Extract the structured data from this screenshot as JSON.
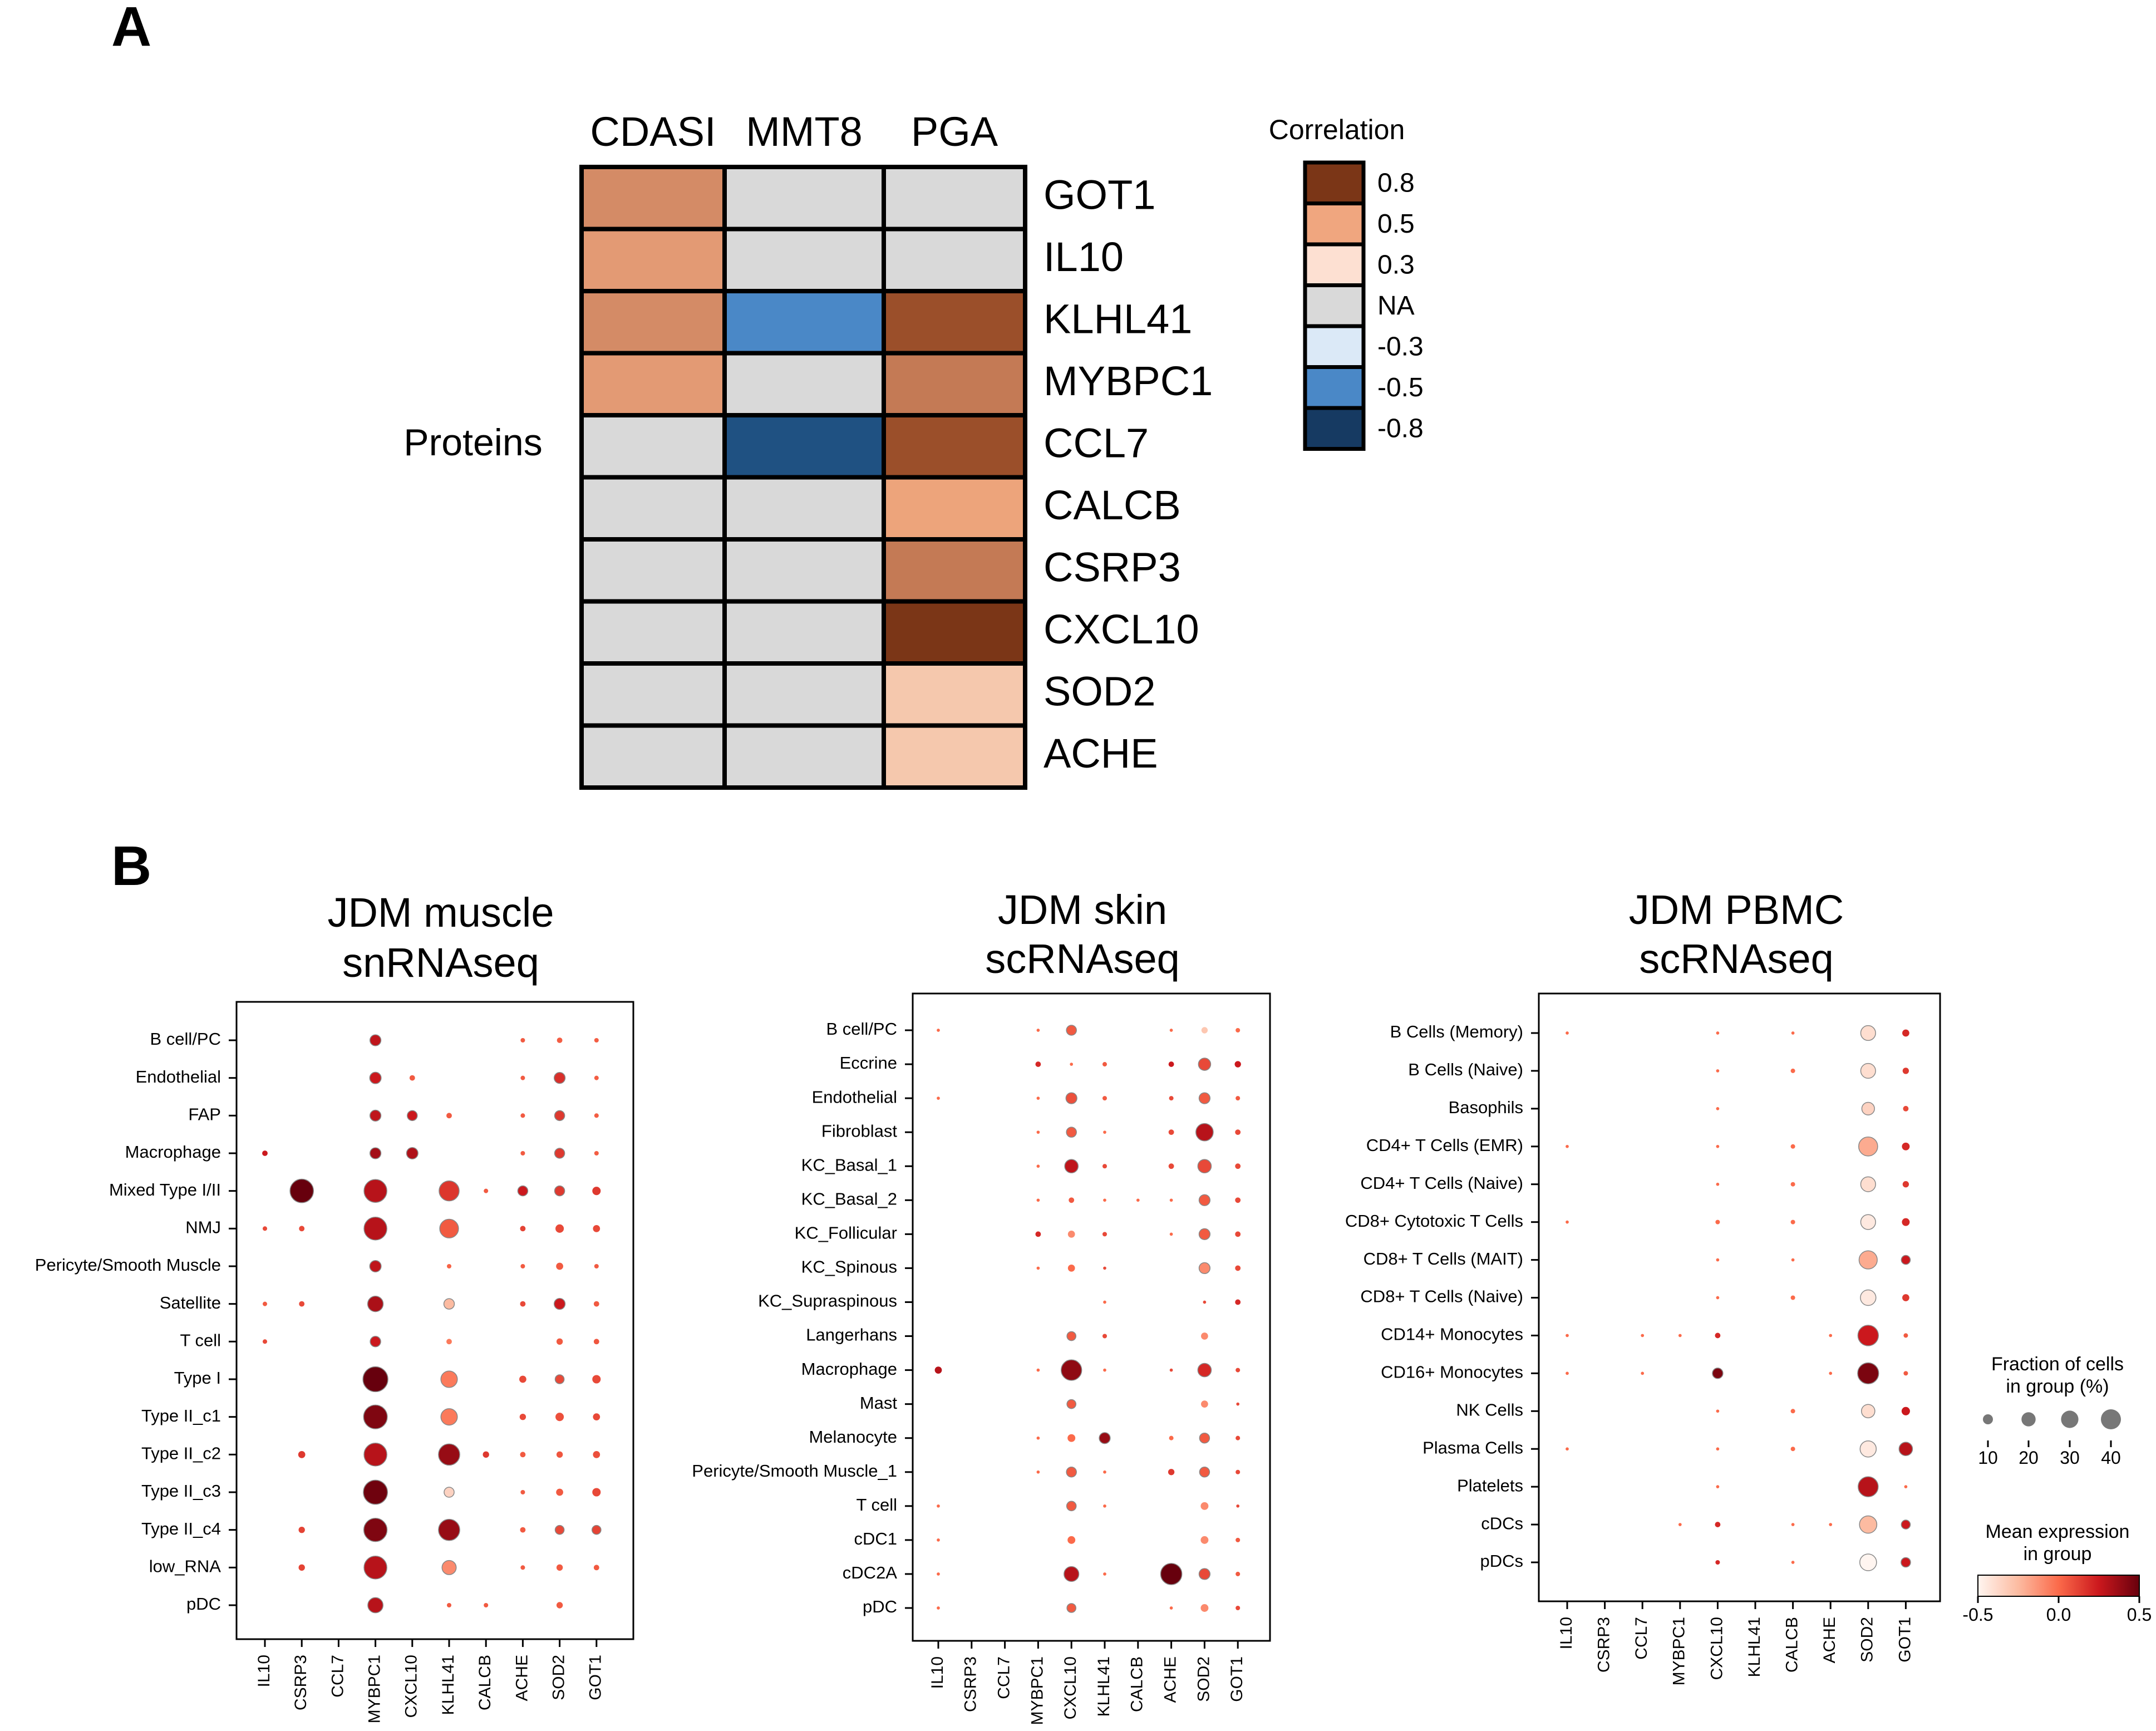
{
  "panel_a_letter": "A",
  "panel_b_letter": "B",
  "colors": {
    "NA": "#d9d9d9",
    "pos_0.8": "#7b3617",
    "pos_0.7": "#9b4f2a",
    "pos_0.6": "#c47a55",
    "pos_0.55": "#d48b66",
    "pos_0.5": "#e39a74",
    "pos_0.45": "#eda47b",
    "pos_0.3": "#f5c8ad",
    "neg_0.5": "#4a88c7",
    "neg_0.8": "#1f5182"
  },
  "chart_data": [
    {
      "type": "heatmap",
      "panel": "A",
      "row_group_label": "Proteins",
      "columns": [
        "CDASI",
        "MMT8",
        "PGA"
      ],
      "rows": [
        "GOT1",
        "IL10",
        "KLHL41",
        "MYBPC1",
        "CCL7",
        "CALCB",
        "CSRP3",
        "CXCL10",
        "SOD2",
        "ACHE"
      ],
      "values": [
        [
          0.55,
          null,
          null
        ],
        [
          0.5,
          null,
          null
        ],
        [
          0.55,
          -0.5,
          0.7
        ],
        [
          0.5,
          null,
          0.6
        ],
        [
          null,
          -0.8,
          0.7
        ],
        [
          null,
          null,
          0.45
        ],
        [
          null,
          null,
          0.6
        ],
        [
          null,
          null,
          0.8
        ],
        [
          null,
          null,
          0.3
        ],
        [
          null,
          null,
          0.3
        ]
      ],
      "legend": {
        "title": "Correlation",
        "entries": [
          "0.8",
          "0.5",
          "0.3",
          "NA",
          "-0.3",
          "-0.5",
          "-0.8"
        ],
        "colors": [
          "#7b3617",
          "#f0a67f",
          "#fde0d2",
          "#d9d9d9",
          "#dbe9f7",
          "#4a88c7",
          "#163a62"
        ]
      }
    },
    {
      "type": "scatter",
      "panel": "B",
      "title_lines": [
        "JDM muscle",
        "snRNAseq"
      ],
      "genes": [
        "IL10",
        "CSRP3",
        "CCL7",
        "MYBPC1",
        "CXCL10",
        "KLHL41",
        "CALCB",
        "ACHE",
        "SOD2",
        "GOT1"
      ],
      "groups": [
        "B cell/PC",
        "Endothelial",
        "FAP",
        "Macrophage",
        "Mixed Type I/II",
        "NMJ",
        "Pericyte/Smooth Muscle",
        "Satellite",
        "T cell",
        "Type I",
        "Type II_c1",
        "Type II_c2",
        "Type II_c3",
        "Type II_c4",
        "low_RNA",
        "pDC"
      ],
      "fraction_pct": [
        [
          0,
          0,
          0,
          12,
          0,
          0,
          0,
          2,
          3,
          2
        ],
        [
          0,
          0,
          0,
          13,
          3,
          0,
          0,
          2,
          12,
          2
        ],
        [
          0,
          0,
          0,
          12,
          10,
          3,
          0,
          2,
          10,
          2
        ],
        [
          3,
          0,
          0,
          12,
          13,
          0,
          0,
          2,
          10,
          2
        ],
        [
          0,
          55,
          0,
          52,
          0,
          40,
          2,
          10,
          10,
          7
        ],
        [
          2,
          3,
          0,
          52,
          0,
          35,
          0,
          3,
          7,
          5
        ],
        [
          0,
          0,
          0,
          13,
          0,
          2,
          0,
          2,
          5,
          2
        ],
        [
          2,
          3,
          0,
          24,
          0,
          11,
          0,
          3,
          12,
          3
        ],
        [
          2,
          0,
          0,
          11,
          0,
          3,
          0,
          0,
          4,
          3
        ],
        [
          0,
          0,
          0,
          62,
          0,
          27,
          0,
          5,
          8,
          7
        ],
        [
          0,
          0,
          0,
          56,
          0,
          27,
          0,
          4,
          7,
          5
        ],
        [
          0,
          5,
          0,
          52,
          0,
          45,
          4,
          3,
          4,
          5
        ],
        [
          0,
          0,
          0,
          58,
          0,
          10,
          0,
          2,
          5,
          7
        ],
        [
          0,
          4,
          0,
          54,
          0,
          45,
          0,
          3,
          8,
          8
        ],
        [
          0,
          4,
          0,
          52,
          0,
          20,
          0,
          2,
          4,
          3
        ],
        [
          0,
          0,
          0,
          23,
          0,
          2,
          2,
          0,
          4,
          0
        ]
      ],
      "mean_expr": [
        [
          0,
          0,
          0,
          0.28,
          0,
          0,
          0,
          0.05,
          0.04,
          0.04
        ],
        [
          0,
          0,
          0,
          0.25,
          0.05,
          0,
          0,
          0.05,
          0.18,
          0.04
        ],
        [
          0,
          0,
          0,
          0.28,
          0.25,
          0.05,
          0,
          0.05,
          0.15,
          0.04
        ],
        [
          0.25,
          0,
          0,
          0.35,
          0.32,
          0,
          0,
          0.05,
          0.15,
          0.04
        ],
        [
          0,
          0.5,
          0,
          0.3,
          0,
          0.16,
          0.05,
          0.25,
          0.15,
          0.15
        ],
        [
          0.1,
          0.1,
          0,
          0.3,
          0,
          0.05,
          0,
          0.12,
          0.1,
          0.1
        ],
        [
          0,
          0,
          0,
          0.28,
          0,
          0.02,
          0,
          0.05,
          0.05,
          0.05
        ],
        [
          0.05,
          0.1,
          0,
          0.33,
          0,
          -0.25,
          0,
          0.1,
          0.25,
          0.05
        ],
        [
          0.1,
          0,
          0,
          0.25,
          0,
          -0.05,
          0,
          0,
          0.05,
          0.06
        ],
        [
          0,
          0,
          0,
          0.5,
          0,
          -0.05,
          0,
          0.1,
          0.1,
          0.1
        ],
        [
          0,
          0,
          0,
          0.44,
          0,
          -0.05,
          0,
          0.1,
          0.08,
          0.1
        ],
        [
          0,
          0.15,
          0,
          0.3,
          0,
          0.38,
          0.15,
          0.05,
          0.06,
          0.08
        ],
        [
          0,
          0,
          0,
          0.48,
          0,
          -0.35,
          0,
          0.05,
          0.05,
          0.1
        ],
        [
          0,
          0.12,
          0,
          0.44,
          0,
          0.38,
          0,
          0.05,
          0.1,
          0.12
        ],
        [
          0,
          0.12,
          0,
          0.3,
          0,
          -0.1,
          0,
          0.05,
          0.05,
          0.05
        ],
        [
          0,
          0,
          0,
          0.3,
          0,
          0.05,
          0.05,
          0,
          0.05,
          0
        ]
      ]
    },
    {
      "type": "scatter",
      "panel": "B",
      "title_lines": [
        "JDM skin",
        "scRNAseq"
      ],
      "genes": [
        "IL10",
        "CSRP3",
        "CCL7",
        "MYBPC1",
        "CXCL10",
        "KLHL41",
        "CALCB",
        "ACHE",
        "SOD2",
        "GOT1"
      ],
      "groups": [
        "B cell/PC",
        "Eccrine",
        "Endothelial",
        "Fibroblast",
        "KC_Basal_1",
        "KC_Basal_2",
        "KC_Follicular",
        "KC_Spinous",
        "KC_Supraspinous",
        "Langerhans",
        "Macrophage",
        "Mast",
        "Melanocyte",
        "Pericyte/Smooth Muscle_1",
        "T cell",
        "cDC1",
        "cDC2A",
        "pDC"
      ],
      "fraction_pct": [
        [
          1,
          0,
          0,
          1,
          10,
          0,
          0,
          1,
          4,
          2
        ],
        [
          0,
          0,
          0,
          3,
          1,
          2,
          0,
          3,
          15,
          4
        ],
        [
          1,
          0,
          0,
          1,
          12,
          2,
          0,
          2,
          12,
          2
        ],
        [
          0,
          0,
          0,
          1,
          10,
          1,
          0,
          3,
          30,
          3
        ],
        [
          0,
          0,
          0,
          1,
          18,
          2,
          0,
          3,
          18,
          3
        ],
        [
          0,
          0,
          0,
          1,
          3,
          1,
          1,
          1,
          12,
          3
        ],
        [
          0,
          0,
          0,
          3,
          5,
          2,
          0,
          1,
          12,
          3
        ],
        [
          0,
          0,
          0,
          1,
          5,
          1,
          0,
          0,
          12,
          3
        ],
        [
          0,
          0,
          0,
          0,
          0,
          1,
          0,
          0,
          1,
          3
        ],
        [
          0,
          0,
          0,
          0,
          8,
          2,
          0,
          0,
          5,
          0
        ],
        [
          5,
          0,
          0,
          1,
          42,
          1,
          0,
          1,
          18,
          2
        ],
        [
          0,
          0,
          0,
          0,
          8,
          0,
          0,
          0,
          5,
          1
        ],
        [
          0,
          0,
          0,
          1,
          6,
          12,
          0,
          2,
          10,
          2
        ],
        [
          0,
          0,
          0,
          1,
          10,
          1,
          0,
          4,
          10,
          2
        ],
        [
          1,
          0,
          0,
          0,
          9,
          1,
          0,
          0,
          6,
          1
        ],
        [
          1,
          0,
          0,
          0,
          6,
          0,
          0,
          0,
          6,
          2
        ],
        [
          1,
          0,
          0,
          0,
          22,
          1,
          0,
          45,
          12,
          2
        ],
        [
          1,
          0,
          0,
          0,
          8,
          0,
          0,
          1,
          6,
          2
        ]
      ],
      "mean_expr": [
        [
          0,
          0,
          0,
          0,
          0.05,
          0,
          0,
          0,
          -0.3,
          0
        ],
        [
          0,
          0,
          0,
          0.2,
          0,
          0.05,
          0,
          0.25,
          0.1,
          0.25
        ],
        [
          0,
          0,
          0,
          0,
          0.08,
          0.05,
          0,
          0.1,
          0.05,
          0.05
        ],
        [
          0,
          0,
          0,
          0,
          0.05,
          0,
          0,
          0.1,
          0.3,
          0.1
        ],
        [
          0,
          0,
          0,
          0,
          0.28,
          0.1,
          0,
          0.1,
          0.1,
          0.1
        ],
        [
          0,
          0,
          0,
          0,
          0.05,
          0,
          0,
          0,
          0.05,
          0.1
        ],
        [
          0,
          0,
          0,
          0.2,
          -0.1,
          0.1,
          0,
          0,
          0.05,
          0.1
        ],
        [
          0,
          0,
          0,
          0,
          0,
          0.1,
          0,
          0,
          -0.1,
          0.1
        ],
        [
          0,
          0,
          0,
          0,
          0,
          0,
          0,
          0,
          0.1,
          0.2
        ],
        [
          0,
          0,
          0,
          0,
          0.05,
          0.1,
          0,
          0,
          -0.1,
          0
        ],
        [
          0.3,
          0,
          0,
          0,
          0.4,
          0,
          0,
          0.1,
          0.2,
          0.1
        ],
        [
          0,
          0,
          0,
          0,
          0.05,
          0,
          0,
          0,
          -0.1,
          0.1
        ],
        [
          0,
          0,
          0,
          0,
          0,
          0.38,
          0,
          0,
          0.05,
          0.1
        ],
        [
          0,
          0,
          0,
          0,
          0.05,
          0,
          0,
          0.15,
          0.05,
          0.1
        ],
        [
          0,
          0,
          0,
          0,
          0.05,
          0,
          0,
          0,
          -0.1,
          0.1
        ],
        [
          0,
          0,
          0,
          0,
          0,
          0,
          0,
          0,
          -0.1,
          0.05
        ],
        [
          0,
          0,
          0,
          0,
          0.3,
          0,
          0,
          0.6,
          0.1,
          0.05
        ],
        [
          0,
          0,
          0,
          0,
          0.05,
          0,
          0,
          0,
          -0.1,
          0.1
        ]
      ]
    },
    {
      "type": "scatter",
      "panel": "B",
      "title_lines": [
        "JDM PBMC",
        "scRNAseq"
      ],
      "genes": [
        "IL10",
        "CSRP3",
        "CCL7",
        "MYBPC1",
        "CXCL10",
        "KLHL41",
        "CALCB",
        "ACHE",
        "SOD2",
        "GOT1"
      ],
      "groups": [
        "B Cells (Memory)",
        "B Cells (Naive)",
        "Basophils",
        "CD4+ T Cells (EMR)",
        "CD4+ T Cells (Naive)",
        "CD8+ Cytotoxic T Cells",
        "CD8+ T Cells (MAIT)",
        "CD8+ T Cells (Naive)",
        "CD14+ Monocytes",
        "CD16+ Monocytes",
        "NK Cells",
        "Plasma Cells",
        "Platelets",
        "cDCs",
        "pDCs"
      ],
      "fraction_pct": [
        [
          1,
          0,
          0,
          0,
          1,
          0,
          1,
          0,
          22,
          5
        ],
        [
          0,
          0,
          0,
          0,
          1,
          0,
          2,
          0,
          22,
          4
        ],
        [
          0,
          0,
          0,
          0,
          1,
          0,
          0,
          0,
          16,
          3
        ],
        [
          1,
          0,
          0,
          0,
          1,
          0,
          2,
          0,
          36,
          6
        ],
        [
          0,
          0,
          0,
          0,
          1,
          0,
          2,
          0,
          22,
          4
        ],
        [
          1,
          0,
          0,
          0,
          2,
          0,
          2,
          0,
          22,
          6
        ],
        [
          0,
          0,
          0,
          0,
          1,
          0,
          1,
          0,
          33,
          8
        ],
        [
          0,
          0,
          0,
          0,
          1,
          0,
          2,
          0,
          24,
          5
        ],
        [
          1,
          0,
          1,
          1,
          3,
          0,
          0,
          1,
          42,
          2
        ],
        [
          1,
          0,
          1,
          0,
          11,
          0,
          0,
          1,
          44,
          2
        ],
        [
          0,
          0,
          0,
          0,
          1,
          0,
          2,
          0,
          18,
          7
        ],
        [
          1,
          0,
          0,
          0,
          1,
          0,
          2,
          0,
          26,
          18
        ],
        [
          0,
          0,
          0,
          0,
          1,
          0,
          0,
          0,
          40,
          1
        ],
        [
          0,
          0,
          0,
          1,
          3,
          0,
          1,
          1,
          30,
          8
        ],
        [
          0,
          0,
          0,
          0,
          2,
          0,
          1,
          0,
          28,
          9
        ]
      ],
      "mean_expr": [
        [
          0,
          0,
          0,
          0,
          0,
          0,
          0,
          0,
          -0.4,
          0.2
        ],
        [
          0,
          0,
          0,
          0,
          0,
          0,
          0,
          0,
          -0.4,
          0.15
        ],
        [
          0,
          0,
          0,
          0,
          0,
          0,
          0,
          0,
          -0.35,
          0.1
        ],
        [
          0,
          0,
          0,
          0,
          0,
          0,
          0,
          0,
          -0.2,
          0.2
        ],
        [
          0,
          0,
          0,
          0,
          0,
          0,
          0,
          0,
          -0.4,
          0.15
        ],
        [
          0,
          0,
          0,
          0,
          0,
          0,
          0,
          0,
          -0.45,
          0.2
        ],
        [
          0,
          0,
          0,
          0,
          0,
          0,
          0,
          0,
          -0.2,
          0.25
        ],
        [
          0,
          0,
          0,
          0,
          0,
          0,
          0,
          0,
          -0.45,
          0.15
        ],
        [
          0,
          0,
          0,
          0,
          0.2,
          0,
          0,
          0,
          0.25,
          0.05
        ],
        [
          0,
          0,
          0,
          0,
          0.45,
          0,
          0,
          0,
          0.45,
          0.05
        ],
        [
          0,
          0,
          0,
          0,
          0,
          0,
          0,
          0,
          -0.4,
          0.25
        ],
        [
          0,
          0,
          0,
          0,
          0,
          0,
          0,
          0,
          -0.45,
          0.3
        ],
        [
          0,
          0,
          0,
          0,
          0,
          0,
          0,
          0,
          0.3,
          0
        ],
        [
          0,
          0,
          0,
          0,
          0.2,
          0,
          0,
          0,
          -0.25,
          0.25
        ],
        [
          0,
          0,
          0,
          0,
          0.2,
          0,
          0,
          0,
          -0.55,
          0.25
        ]
      ]
    }
  ],
  "size_legend": {
    "title_lines": [
      "Fraction of cells",
      "in group (%)"
    ],
    "values": [
      10,
      20,
      30,
      40
    ]
  },
  "color_legend": {
    "title_lines": [
      "Mean expression",
      "in group"
    ],
    "range": [
      -0.5,
      0.5
    ],
    "ticks": [
      "-0.5",
      "0.0",
      "0.5"
    ]
  }
}
